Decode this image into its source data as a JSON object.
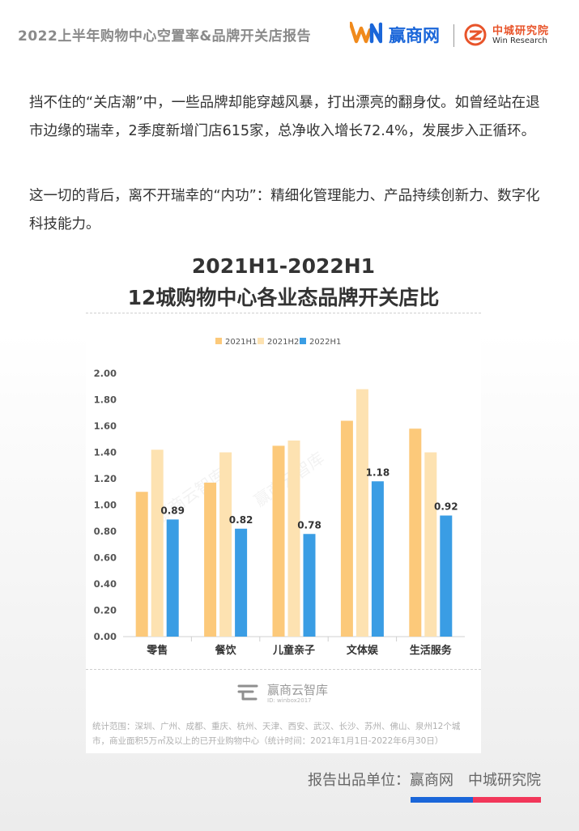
{
  "header": {
    "report_title": "2022上半年购物中心空置率&品牌开关店报告",
    "logo_win_name": "赢商网",
    "logo_zc_cn": "中城研究院",
    "logo_zc_en": "Win Research"
  },
  "body": {
    "paragraph_1": "挡不住的“关店潮”中，一些品牌却能穿越风暴，打出漂亮的翻身仗。如曾经站在退市边缘的瑞幸，2季度新增门店615家，总净收入增长72.4%，发展步入正循环。",
    "paragraph_2": "这一切的背后，离不开瑞幸的“内功”：精细化管理能力、产品持续创新力、数字化科技能力。"
  },
  "chart_card": {
    "title_line_1": "2021H1-2022H1",
    "title_line_2": "12城购物中心各业态品牌开关店比",
    "brand_name": "赢商云智库",
    "brand_id": "ID: winbox2017",
    "watermark": "赢商云智库",
    "footnote": "统计范围：深圳、广州、成都、重庆、杭州、天津、西安、武汉、长沙、苏州、佛山、泉州12个城市，商业面积5万㎡及以上的已开业购物中心（统计时间：2021年1月1日-2022年6月30日）"
  },
  "chart_data": {
    "type": "bar",
    "title": "2021H1-2022H1 12城购物中心各业态品牌开关店比",
    "categories": [
      "零售",
      "餐饮",
      "儿童亲子",
      "文体娱",
      "生活服务"
    ],
    "series": [
      {
        "name": "2021H1",
        "color": "#fcc97a",
        "values": [
          1.1,
          1.17,
          1.45,
          1.64,
          1.58
        ],
        "show_labels": false
      },
      {
        "name": "2021H2",
        "color": "#fde2b1",
        "values": [
          1.42,
          1.4,
          1.49,
          1.88,
          1.4
        ],
        "show_labels": false
      },
      {
        "name": "2022H1",
        "color": "#3a9de4",
        "values": [
          0.89,
          0.82,
          0.78,
          1.18,
          0.92
        ],
        "show_labels": true
      }
    ],
    "ylim": [
      0,
      2.0
    ],
    "yticks": [
      "0.00",
      "0.20",
      "0.40",
      "0.60",
      "0.80",
      "1.00",
      "1.20",
      "1.40",
      "1.60",
      "1.80",
      "2.00"
    ],
    "legend_position": "top-center",
    "grid": false
  },
  "footer": {
    "report_unit_label": "报告出品单位：赢商网",
    "report_unit_label_2": "中城研究院",
    "accent_blue": "#1a66d9",
    "accent_red": "#f2375a"
  }
}
